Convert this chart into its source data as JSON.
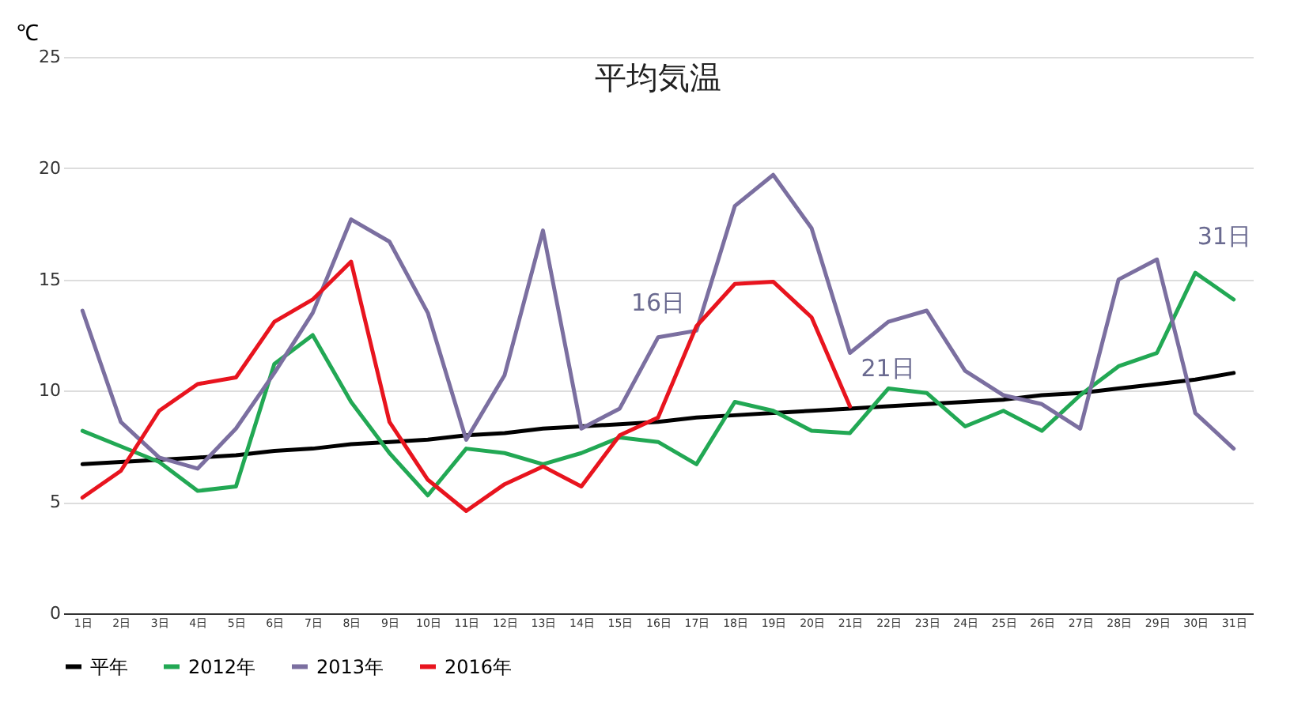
{
  "chart_data": {
    "type": "line",
    "title": "平均気温",
    "ylabel": "℃",
    "categories": [
      "1日",
      "2日",
      "3日",
      "4日",
      "5日",
      "6日",
      "7日",
      "8日",
      "9日",
      "10日",
      "11日",
      "12日",
      "13日",
      "14日",
      "15日",
      "16日",
      "17日",
      "18日",
      "19日",
      "20日",
      "21日",
      "22日",
      "23日",
      "24日",
      "25日",
      "26日",
      "27日",
      "28日",
      "29日",
      "30日",
      "31日"
    ],
    "series": [
      {
        "name": "平年",
        "color": "#000000",
        "values": [
          6.7,
          6.8,
          6.9,
          7.0,
          7.1,
          7.3,
          7.4,
          7.6,
          7.7,
          7.8,
          8.0,
          8.1,
          8.3,
          8.4,
          8.5,
          8.6,
          8.8,
          8.9,
          9.0,
          9.1,
          9.2,
          9.3,
          9.4,
          9.5,
          9.6,
          9.8,
          9.9,
          10.1,
          10.3,
          10.5,
          10.8
        ]
      },
      {
        "name": "2012年",
        "color": "#22a854",
        "values": [
          8.2,
          7.5,
          6.8,
          5.5,
          5.7,
          11.2,
          12.5,
          9.5,
          7.2,
          5.3,
          7.4,
          7.2,
          6.7,
          7.2,
          7.9,
          7.7,
          6.7,
          9.5,
          9.1,
          8.2,
          8.1,
          10.1,
          9.9,
          8.4,
          9.1,
          8.2,
          9.8,
          11.1,
          11.7,
          15.3,
          14.1
        ]
      },
      {
        "name": "2013年",
        "color": "#7b6fa0",
        "values": [
          13.6,
          8.6,
          7.0,
          6.5,
          8.3,
          10.8,
          13.5,
          17.7,
          16.7,
          13.5,
          7.8,
          10.7,
          17.2,
          8.3,
          9.2,
          12.4,
          12.7,
          18.3,
          19.7,
          17.3,
          11.7,
          13.1,
          13.6,
          10.9,
          9.8,
          9.4,
          8.3,
          15.0,
          15.9,
          9.0,
          7.4
        ]
      },
      {
        "name": "2016年",
        "color": "#e8141e",
        "values": [
          5.2,
          6.4,
          9.1,
          10.3,
          10.6,
          13.1,
          14.1,
          15.8,
          8.6,
          6.0,
          4.6,
          5.8,
          6.6,
          5.7,
          8.0,
          8.8,
          12.9,
          14.8,
          14.9,
          13.3,
          9.3,
          null,
          null,
          null,
          null,
          null,
          null,
          null,
          null,
          null,
          null
        ]
      }
    ],
    "annotations": [
      {
        "text": "16日",
        "x": "16日",
        "y": 12.4
      },
      {
        "text": "21日",
        "x": "21日",
        "y": 9.3
      },
      {
        "text": "31日",
        "x": "31日",
        "y": 14.1
      }
    ],
    "ylim": [
      0,
      25
    ],
    "yticks": [
      0,
      5,
      10,
      15,
      20,
      25
    ],
    "grid": "y",
    "legend": "bottom"
  }
}
